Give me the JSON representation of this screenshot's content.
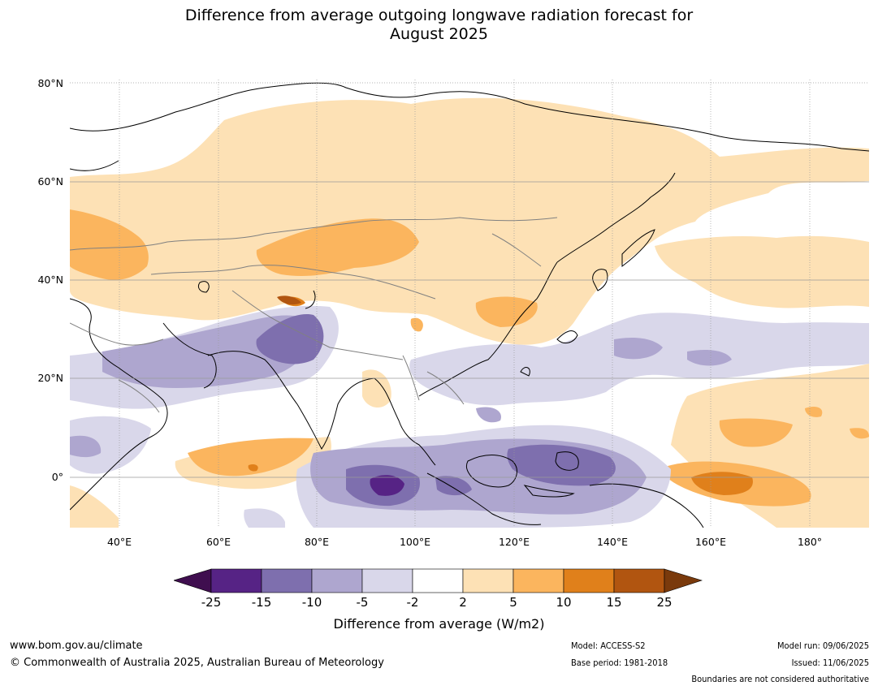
{
  "title_line1": "Difference from average outgoing longwave radiation forecast for",
  "title_line2": "August 2025",
  "map": {
    "lat_labels": [
      "80°N",
      "60°N",
      "40°N",
      "20°N",
      "0°"
    ],
    "lon_labels": [
      "40°E",
      "60°E",
      "80°E",
      "100°E",
      "120°E",
      "140°E",
      "160°E",
      "180°"
    ],
    "colors": {
      "p25": "#3f0e4f",
      "p15": "#562385",
      "p10": "#7e6fae",
      "p5": "#aea6cf",
      "p2": "#d9d7ea",
      "neutral": "#ffffff",
      "o2": "#fde1b5",
      "o5": "#fbb55e",
      "o10": "#e0801b",
      "o15": "#b15510",
      "o25": "#7a3a0c",
      "land_outline": "#000000",
      "border": "#808080",
      "grid": "#9a9a9a"
    }
  },
  "colorbar": {
    "ticks": [
      "-25",
      "-15",
      "-10",
      "-5",
      "-2",
      "2",
      "5",
      "10",
      "15",
      "25"
    ],
    "label": "Difference from average (W/m2)"
  },
  "footer": {
    "url": "www.bom.gov.au/climate",
    "copyright": "© Commonwealth of Australia 2025, Australian Bureau of Meteorology",
    "model": "Model: ACCESS-S2",
    "base_period": "Base period: 1981-2018",
    "model_run": "Model run: 09/06/2025",
    "issued": "Issued: 11/06/2025",
    "disclaimer": "Boundaries are not considered authoritative"
  }
}
